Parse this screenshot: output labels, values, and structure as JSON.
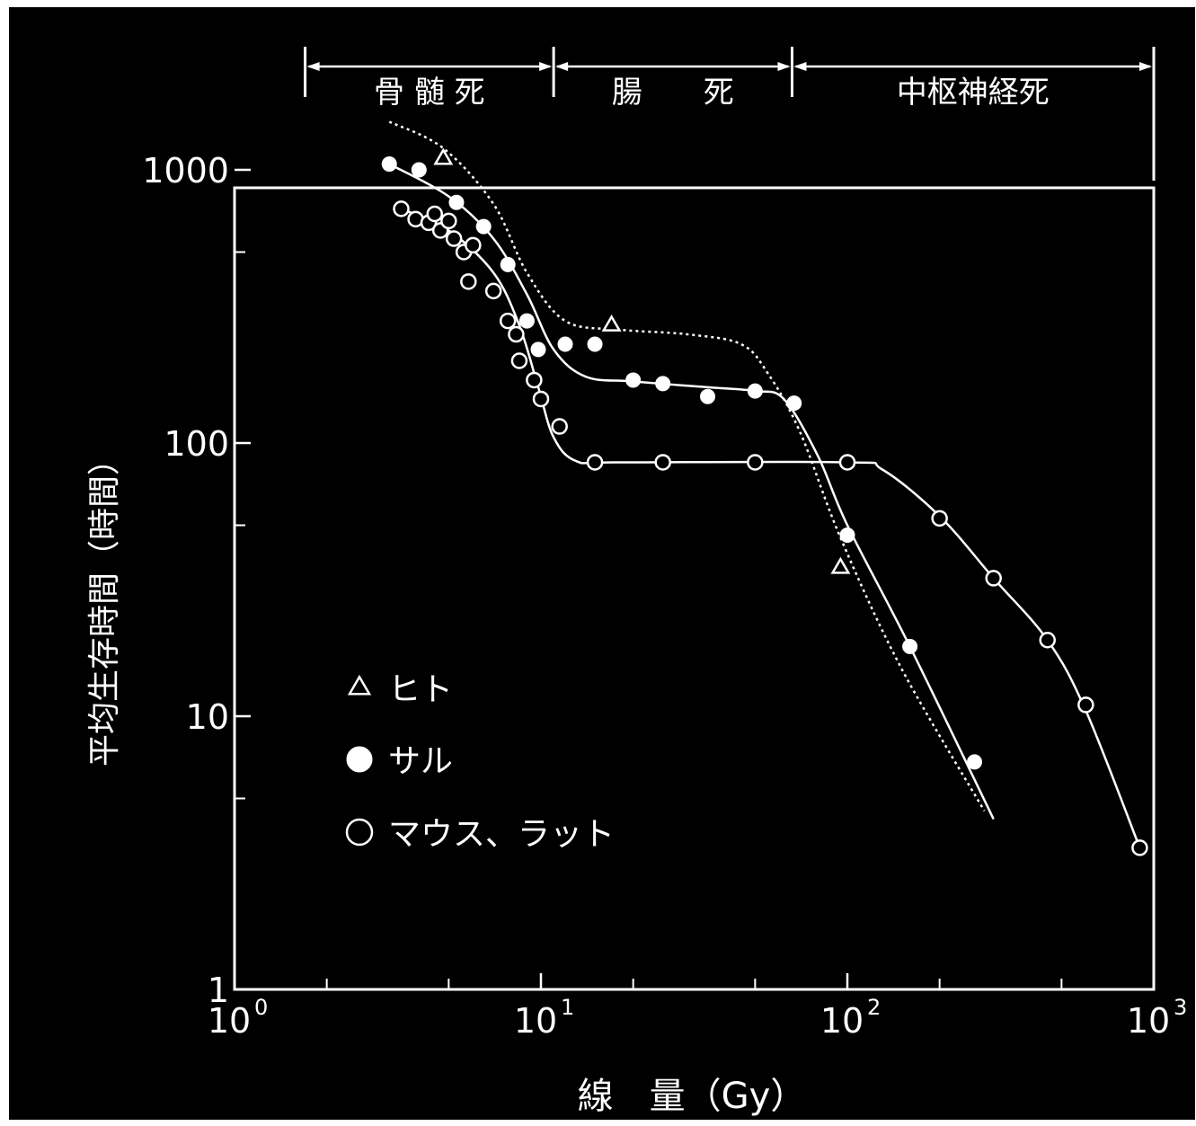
{
  "chart_data": {
    "type": "scatter",
    "title": "",
    "xlabel": "線　量（Gy）",
    "ylabel": "平均生存時間（時間）",
    "xscale": "log",
    "yscale": "log",
    "xlim": [
      1,
      1000
    ],
    "ylim": [
      1,
      2000
    ],
    "x_ticks": [
      {
        "value": 1,
        "base": "10",
        "exp": "0"
      },
      {
        "value": 10,
        "base": "10",
        "exp": "1"
      },
      {
        "value": 100,
        "base": "10",
        "exp": "2"
      },
      {
        "value": 1000,
        "base": "10",
        "exp": "3"
      }
    ],
    "y_ticks": [
      {
        "value": 1,
        "label": "1"
      },
      {
        "value": 10,
        "label": "10"
      },
      {
        "value": 100,
        "label": "100"
      },
      {
        "value": 1000,
        "label": "1000"
      }
    ],
    "regions": [
      {
        "label": "骨 髄 死",
        "from": 1.7,
        "to": 11
      },
      {
        "label": "腸　　死",
        "from": 11,
        "to": 66
      },
      {
        "label": "中枢神経死",
        "from": 66,
        "to": 1000
      }
    ],
    "legend_position": "lower-left",
    "series": [
      {
        "name": "ヒト",
        "marker": "open-triangle",
        "line": "dotted",
        "points": [
          [
            4.8,
            1100
          ],
          [
            17,
            270
          ],
          [
            95,
            35
          ]
        ],
        "curve": [
          [
            3.2,
            1500
          ],
          [
            4.8,
            1200
          ],
          [
            7,
            750
          ],
          [
            9,
            420
          ],
          [
            12,
            280
          ],
          [
            18,
            260
          ],
          [
            30,
            250
          ],
          [
            45,
            230
          ],
          [
            55,
            180
          ],
          [
            70,
            110
          ],
          [
            95,
            45
          ],
          [
            150,
            15
          ],
          [
            280,
            4.5
          ]
        ]
      },
      {
        "name": "サル",
        "marker": "filled-circle",
        "line": "solid",
        "points": [
          [
            3.2,
            1050
          ],
          [
            4,
            1000
          ],
          [
            5.3,
            760
          ],
          [
            6.5,
            620
          ],
          [
            7.8,
            450
          ],
          [
            9,
            280
          ],
          [
            9.8,
            220
          ],
          [
            12,
            230
          ],
          [
            15,
            230
          ],
          [
            20,
            170
          ],
          [
            25,
            165
          ],
          [
            35,
            148
          ],
          [
            50,
            155
          ],
          [
            67,
            140
          ],
          [
            100,
            46
          ],
          [
            160,
            18
          ],
          [
            260,
            6.8
          ]
        ]
      },
      {
        "name": "マウス、ラット",
        "marker": "open-circle",
        "line": "solid",
        "points": [
          [
            3.5,
            720
          ],
          [
            3.9,
            660
          ],
          [
            4.3,
            640
          ],
          [
            4.5,
            690
          ],
          [
            4.7,
            600
          ],
          [
            5,
            650
          ],
          [
            5.2,
            560
          ],
          [
            5.6,
            500
          ],
          [
            6,
            530
          ],
          [
            5.8,
            390
          ],
          [
            7,
            360
          ],
          [
            7.8,
            280
          ],
          [
            8.3,
            250
          ],
          [
            8.5,
            200
          ],
          [
            9.5,
            170
          ],
          [
            10,
            145
          ],
          [
            11.5,
            115
          ],
          [
            15,
            85
          ],
          [
            25,
            85
          ],
          [
            50,
            85
          ],
          [
            100,
            85
          ],
          [
            200,
            53
          ],
          [
            300,
            32
          ],
          [
            450,
            19
          ],
          [
            600,
            11
          ],
          [
            900,
            3.3
          ]
        ]
      }
    ]
  }
}
